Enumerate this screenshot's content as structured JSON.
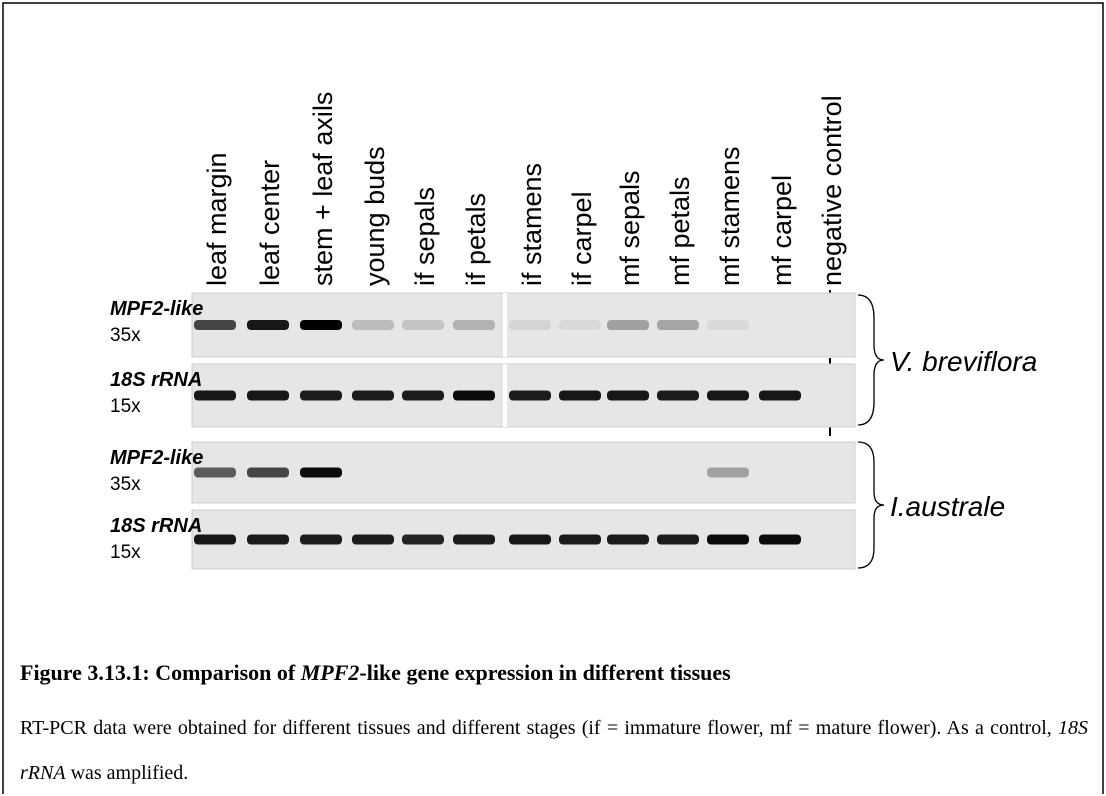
{
  "figure": {
    "lanes": [
      "leaf margin",
      "leaf center",
      "stem + leaf axils",
      "young buds",
      "if sepals",
      "if petals",
      "if stamens",
      "if carpel",
      "mf sepals",
      "mf petals",
      "mf stamens",
      "mf carpel",
      "negative control"
    ],
    "panels": [
      {
        "species": "V. breviflora",
        "rows": [
          {
            "gene": "MPF2-like",
            "cycles": "35x"
          },
          {
            "gene": "18S rRNA",
            "cycles": "15x"
          }
        ]
      },
      {
        "species": "I.australe",
        "rows": [
          {
            "gene": "MPF2-like",
            "cycles": "35x"
          },
          {
            "gene": "18S rRNA",
            "cycles": "15x"
          }
        ]
      }
    ],
    "caption": {
      "label": "Figure 3.13.1:",
      "title_parts": [
        "Comparison of",
        "MPF2",
        "-like gene expression in different tissues"
      ],
      "text_parts": [
        "RT-PCR data were obtained for different tissues and different stages (if = immature flower, mf = mature flower). As a control,",
        "18S rRNA",
        "was amplified."
      ]
    }
  }
}
